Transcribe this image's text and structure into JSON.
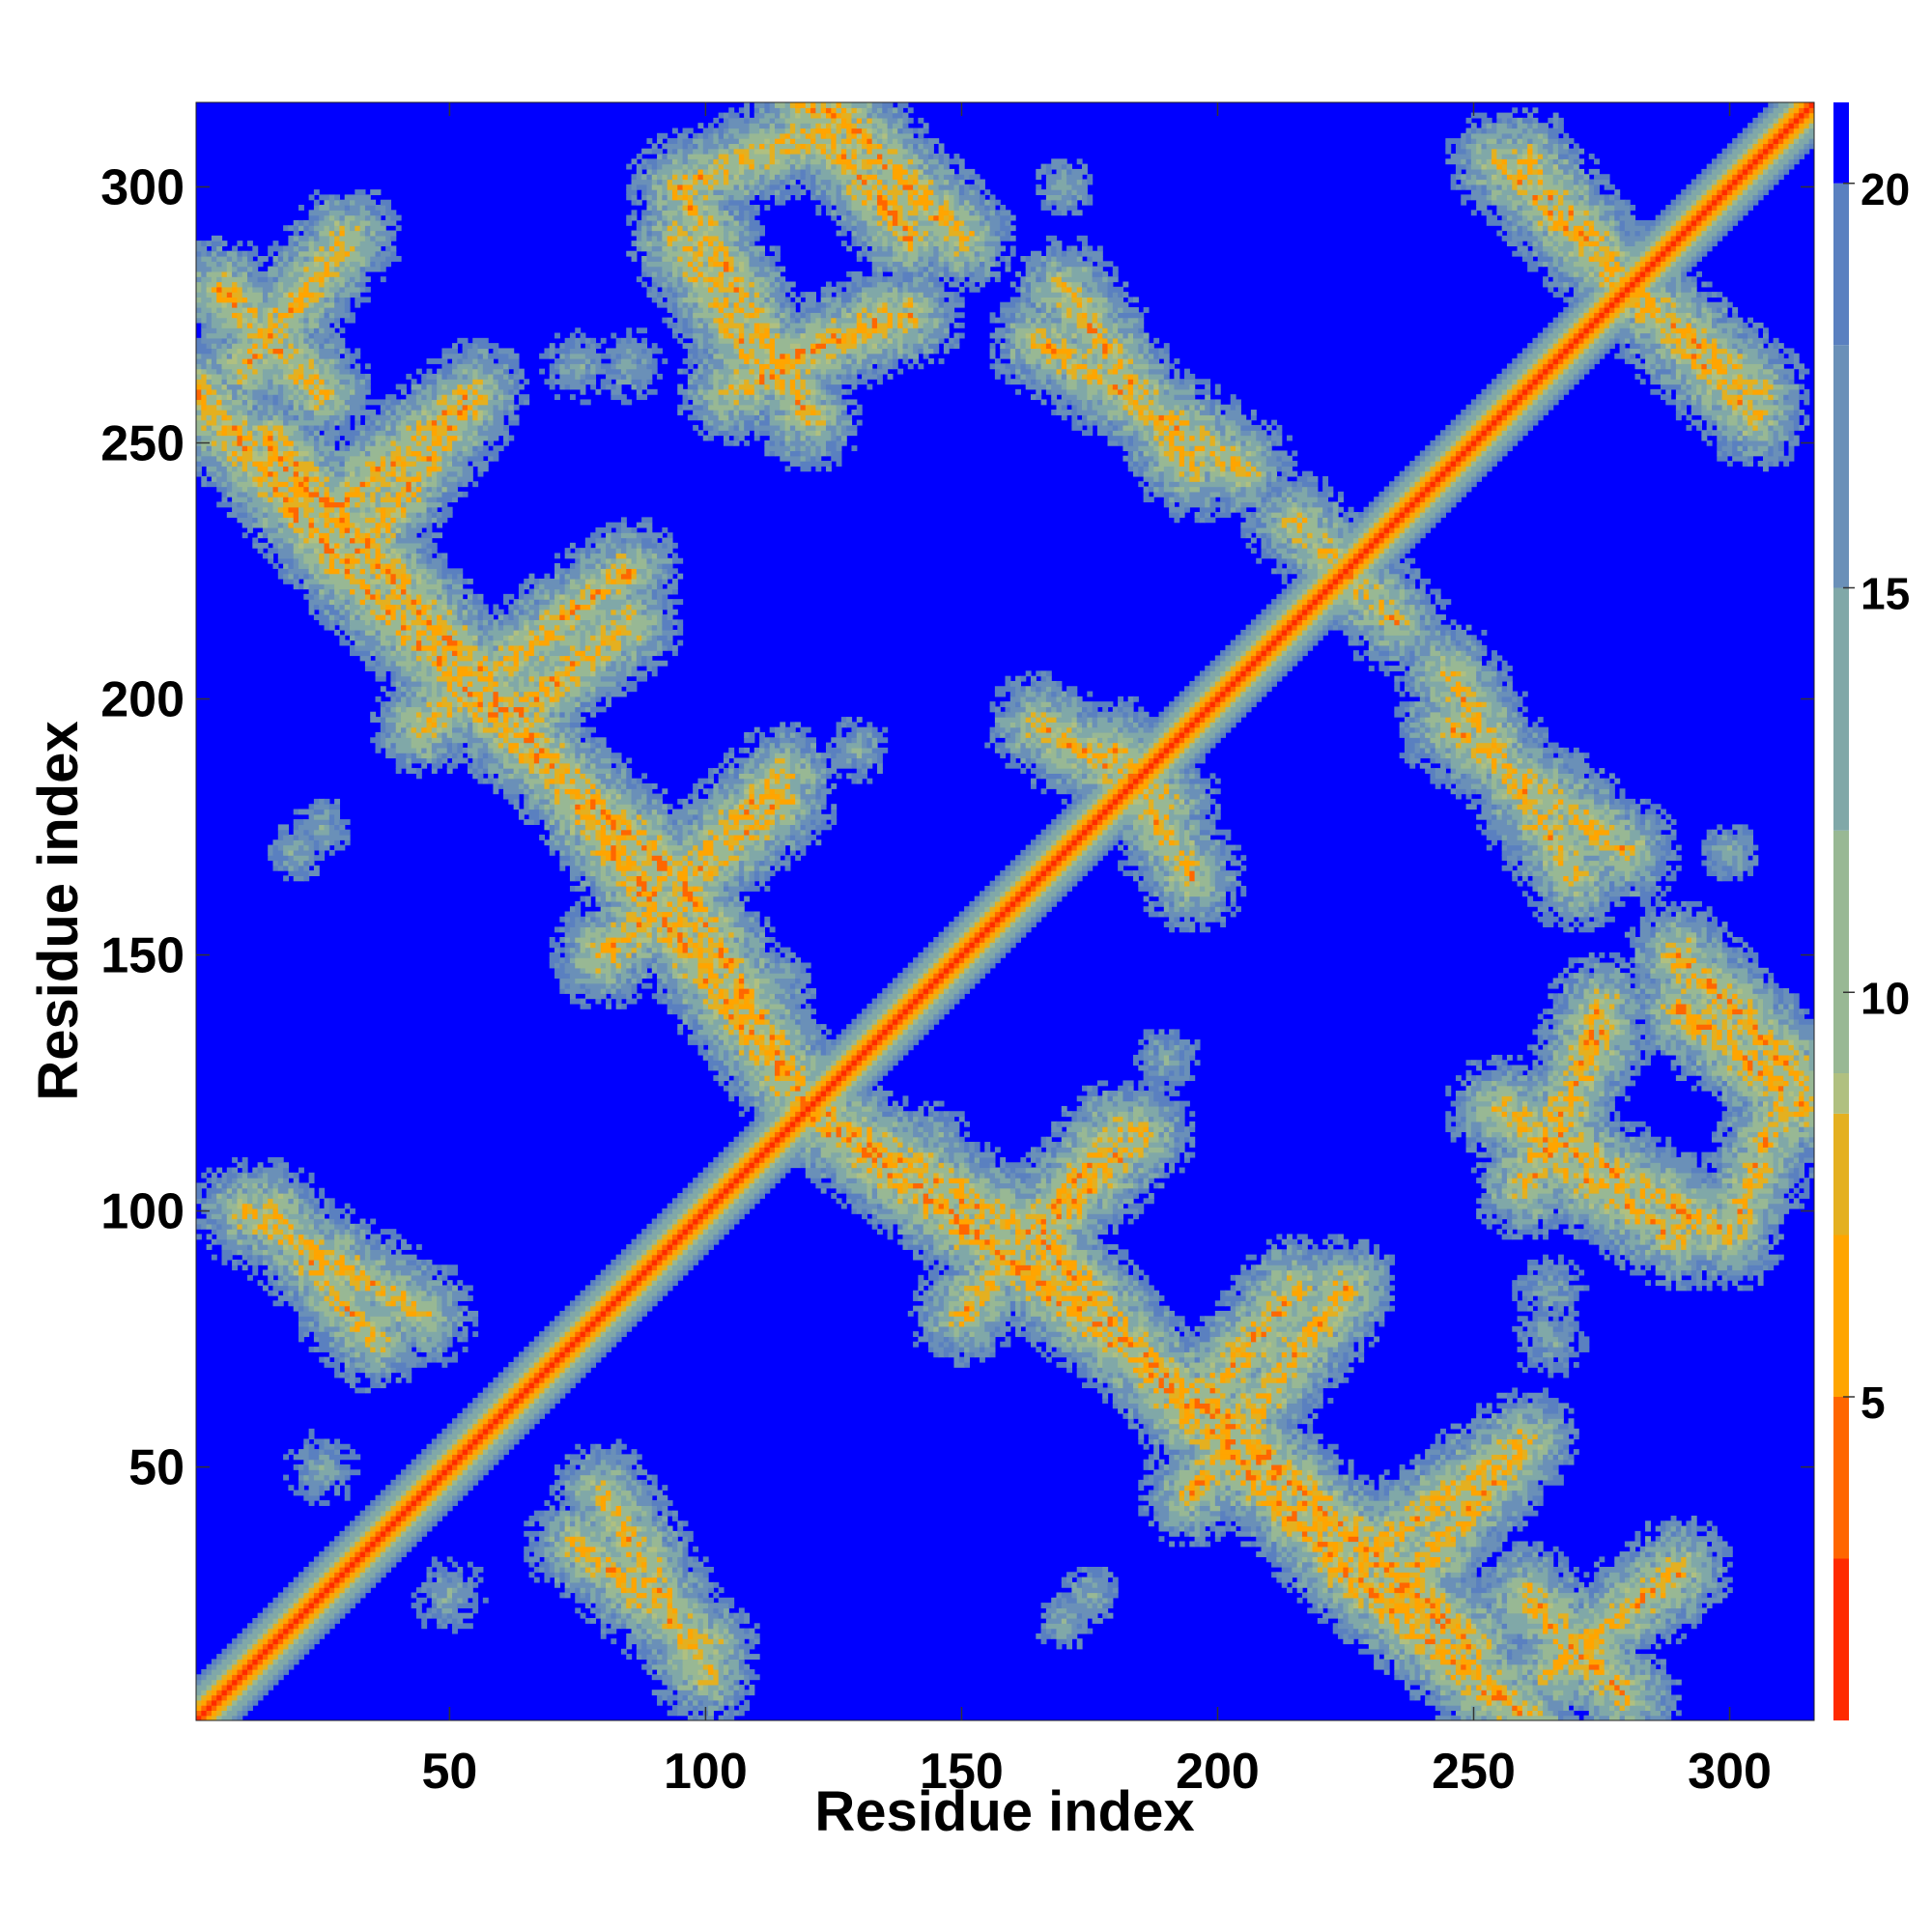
{
  "chart_data": {
    "type": "heatmap",
    "title": "",
    "xlabel": "Residue index",
    "ylabel": "Residue index",
    "n_residues": 316,
    "xlim": [
      1,
      316
    ],
    "ylim": [
      1,
      316
    ],
    "x_ticks": [
      50,
      100,
      150,
      200,
      250,
      300
    ],
    "y_ticks": [
      50,
      100,
      150,
      200,
      250,
      300
    ],
    "colorbar": {
      "ticks": [
        5,
        10,
        15,
        20
      ],
      "range": [
        1,
        21
      ],
      "colors": [
        {
          "value": 1,
          "color": "#ff0000"
        },
        {
          "value": 3,
          "color": "#ff2a00"
        },
        {
          "value": 5,
          "color": "#ff6600"
        },
        {
          "value": 7,
          "color": "#ffa500"
        },
        {
          "value": 8.5,
          "color": "#e4b020"
        },
        {
          "value": 9,
          "color": "#b0c080"
        },
        {
          "value": 12,
          "color": "#98b894"
        },
        {
          "value": 15,
          "color": "#80a8a8"
        },
        {
          "value": 18,
          "color": "#6a90b8"
        },
        {
          "value": 20,
          "color": "#5a80c0"
        },
        {
          "value": 20.5,
          "color": "#0000ff"
        }
      ]
    },
    "contact_bands": [
      {
        "from": [
          1,
          260
        ],
        "to": [
          30,
          225
        ],
        "strength": 0.9
      },
      {
        "from": [
          30,
          225
        ],
        "to": [
          60,
          195
        ],
        "strength": 0.8
      },
      {
        "from": [
          60,
          195
        ],
        "to": [
          95,
          165
        ],
        "strength": 0.9
      },
      {
        "from": [
          95,
          165
        ],
        "to": [
          120,
          120
        ],
        "strength": 0.8
      },
      {
        "from": [
          120,
          120
        ],
        "to": [
          200,
          60
        ],
        "strength": 0.9
      },
      {
        "from": [
          200,
          60
        ],
        "to": [
          250,
          15
        ],
        "strength": 0.9
      },
      {
        "from": [
          30,
          225
        ],
        "to": [
          55,
          260
        ],
        "strength": 0.7
      },
      {
        "from": [
          60,
          195
        ],
        "to": [
          85,
          215
        ],
        "strength": 0.7
      },
      {
        "from": [
          95,
          165
        ],
        "to": [
          115,
          185
        ],
        "strength": 0.7
      },
      {
        "from": [
          150,
          80
        ],
        "to": [
          180,
          115
        ],
        "strength": 0.7
      },
      {
        "from": [
          195,
          45
        ],
        "to": [
          225,
          85
        ],
        "strength": 0.7
      },
      {
        "from": [
          235,
          25
        ],
        "to": [
          260,
          55
        ],
        "strength": 0.7
      },
      {
        "from": [
          265,
          10
        ],
        "to": [
          290,
          30
        ],
        "strength": 0.7
      },
      {
        "from": [
          260,
          105
        ],
        "to": [
          275,
          135
        ],
        "strength": 0.7
      },
      {
        "from": [
          255,
          120
        ],
        "to": [
          300,
          95
        ],
        "strength": 0.7
      },
      {
        "from": [
          290,
          140
        ],
        "to": [
          315,
          120
        ],
        "strength": 0.8
      },
      {
        "from": [
          300,
          95
        ],
        "to": [
          310,
          120
        ],
        "strength": 0.6
      },
      {
        "from": [
          95,
          290
        ],
        "to": [
          110,
          265
        ],
        "strength": 0.7
      },
      {
        "from": [
          110,
          265
        ],
        "to": [
          140,
          275
        ],
        "strength": 0.7
      },
      {
        "from": [
          125,
          315
        ],
        "to": [
          150,
          290
        ],
        "strength": 0.8
      },
      {
        "from": [
          5,
          280
        ],
        "to": [
          25,
          260
        ],
        "strength": 0.7
      },
      {
        "from": [
          165,
          270
        ],
        "to": [
          205,
          245
        ],
        "strength": 0.6
      },
      {
        "from": [
          245,
          195
        ],
        "to": [
          280,
          170
        ],
        "strength": 0.6
      },
      {
        "from": [
          255,
          305
        ],
        "to": [
          275,
          285
        ],
        "strength": 0.6
      },
      {
        "from": [
          275,
          285
        ],
        "to": [
          305,
          260
        ],
        "strength": 0.7
      },
      {
        "from": [
          165,
          195
        ],
        "to": [
          190,
          180
        ],
        "strength": 0.6
      },
      {
        "from": [
          10,
          100
        ],
        "to": [
          45,
          80
        ],
        "strength": 0.6
      },
      {
        "from": [
          75,
          35
        ],
        "to": [
          100,
          15
        ],
        "strength": 0.6
      },
      {
        "from": [
          220,
          230
        ],
        "to": [
          235,
          215
        ],
        "strength": 0.5
      }
    ],
    "contact_blobs": [
      {
        "center": [
          75,
          210
        ],
        "radius": 8
      },
      {
        "center": [
          105,
          175
        ],
        "radius": 7
      },
      {
        "center": [
          175,
          260
        ],
        "radius": 9
      },
      {
        "center": [
          85,
          265
        ],
        "radius": 8
      },
      {
        "center": [
          20,
          170
        ],
        "radius": 6
      },
      {
        "center": [
          115,
          145
        ],
        "radius": 7
      },
      {
        "center": [
          265,
          75
        ],
        "radius": 8
      },
      {
        "center": [
          190,
          130
        ],
        "radius": 7
      },
      {
        "center": [
          300,
          170
        ],
        "radius": 6
      },
      {
        "center": [
          25,
          50
        ],
        "radius": 8
      },
      {
        "center": [
          175,
          25
        ],
        "radius": 6
      }
    ]
  }
}
